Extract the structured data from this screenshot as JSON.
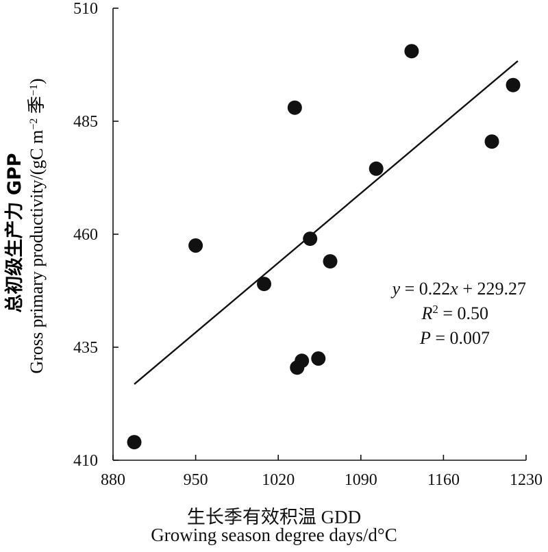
{
  "chart_data": {
    "type": "scatter",
    "xlabel_cn": "生长季有效积温 GDD",
    "xlabel_en": "Growing season degree days/d°C",
    "ylabel_cn": "总初级生产力 GPP",
    "ylabel_en": "Gross primary productivity/(gC m",
    "ylabel_en_sup1": "−2",
    "ylabel_en_mid": " 季",
    "ylabel_en_sup2": "−1",
    "ylabel_en_end": ")",
    "xlim": [
      880,
      1230
    ],
    "ylim": [
      410,
      510
    ],
    "xticks": [
      880,
      950,
      1020,
      1090,
      1160,
      1230
    ],
    "yticks": [
      410,
      435,
      460,
      485,
      510
    ],
    "points": [
      {
        "x": 898,
        "y": 414
      },
      {
        "x": 950,
        "y": 457.5
      },
      {
        "x": 1008,
        "y": 449
      },
      {
        "x": 1034,
        "y": 488
      },
      {
        "x": 1036,
        "y": 430.5
      },
      {
        "x": 1040,
        "y": 432
      },
      {
        "x": 1047,
        "y": 459
      },
      {
        "x": 1054,
        "y": 432.5
      },
      {
        "x": 1064,
        "y": 454
      },
      {
        "x": 1103,
        "y": 474.5
      },
      {
        "x": 1133,
        "y": 500.5
      },
      {
        "x": 1201,
        "y": 480.5
      },
      {
        "x": 1219,
        "y": 493
      }
    ],
    "fit": {
      "slope": 0.22,
      "intercept": 229.27,
      "x_range": [
        898,
        1223
      ]
    },
    "annotation": {
      "eq_y": "y",
      "eq_eq": " = 0.22",
      "eq_x": "x",
      "eq_rest": " + 229.27",
      "r_R": "R",
      "r_sup": "2",
      "r_rest": " = 0.50",
      "p_P": "P",
      "p_rest": " = 0.007"
    },
    "grid": false,
    "legend": "none"
  }
}
